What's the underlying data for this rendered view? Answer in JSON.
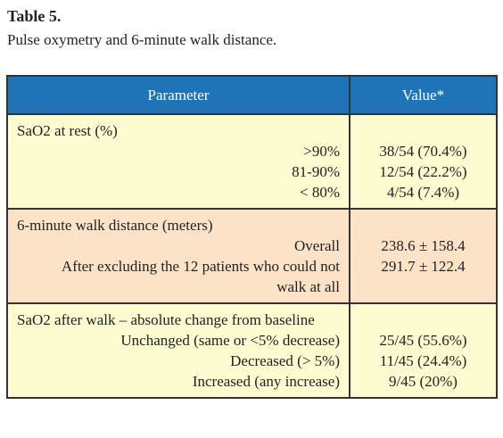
{
  "header": {
    "title": "Table 5.",
    "subtitle": "Pulse oxymetry and 6-minute walk distance."
  },
  "table": {
    "columns": [
      "Parameter",
      "Value*"
    ],
    "sections": [
      {
        "label": "SaO2 at rest (%)",
        "rows": [
          {
            "parameter": ">90%",
            "value": "38/54 (70.4%)"
          },
          {
            "parameter": "81-90%",
            "value": "12/54 (22.2%)"
          },
          {
            "parameter": "< 80%",
            "value": "4/54 (7.4%)"
          }
        ]
      },
      {
        "label": "6-minute walk distance (meters)",
        "rows": [
          {
            "parameter": "Overall",
            "value": "238.6 ± 158.4"
          },
          {
            "parameter": "After excluding the 12 patients who could not walk at all",
            "value": "291.7 ± 122.4"
          }
        ]
      },
      {
        "label": "SaO2 after walk – absolute change from baseline",
        "rows": [
          {
            "parameter": "Unchanged (same or <5% decrease)",
            "value": "25/45 (55.6%)"
          },
          {
            "parameter": "Decreased (> 5%)",
            "value": "11/45 (24.4%)"
          },
          {
            "parameter": "Increased (any increase)",
            "value": "9/45 (20%)"
          }
        ]
      }
    ]
  }
}
